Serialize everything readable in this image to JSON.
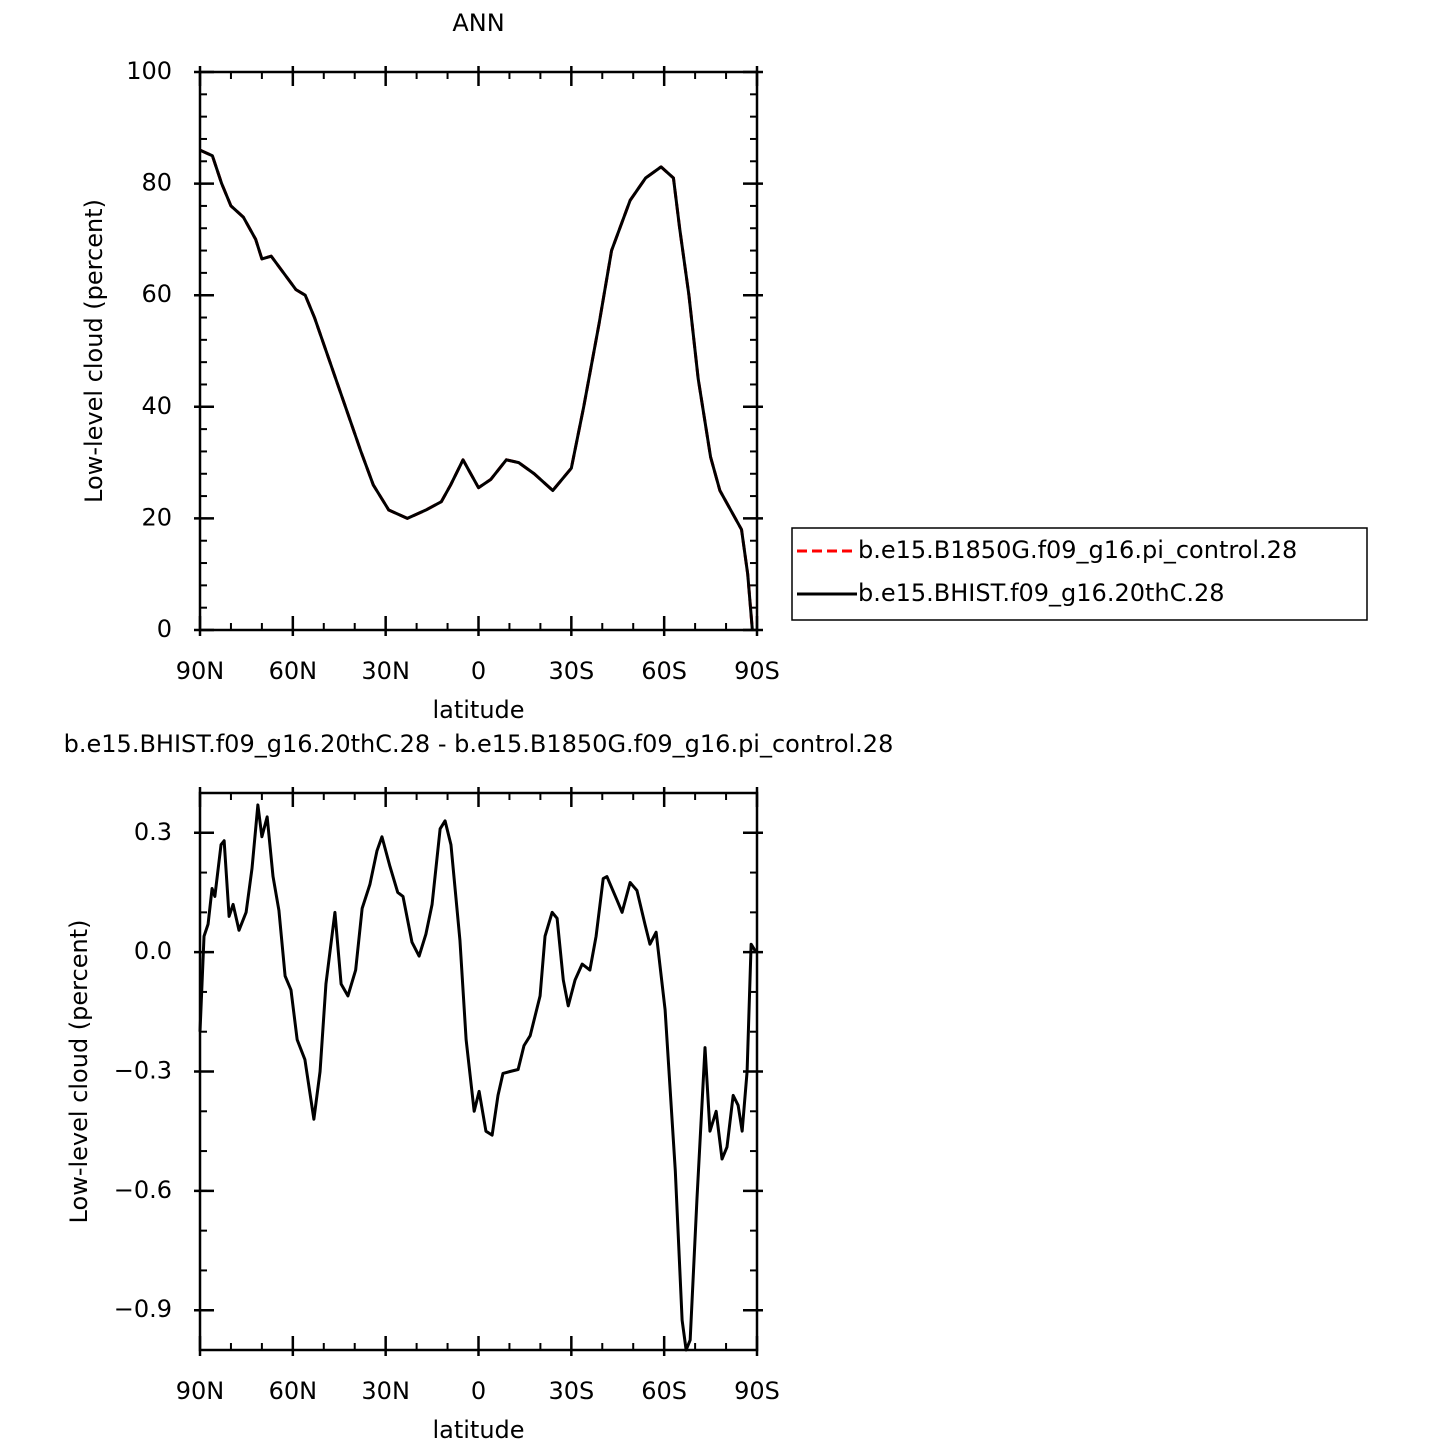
{
  "chart_data": [
    {
      "type": "line",
      "title": "ANN",
      "xlabel": "latitude",
      "ylabel": "Low-level cloud (percent)",
      "xlim": [
        90,
        -90
      ],
      "xticks": [
        {
          "value": 90,
          "label": "90N"
        },
        {
          "value": 60,
          "label": "60N"
        },
        {
          "value": 30,
          "label": "30N"
        },
        0,
        {
          "value": -30,
          "label": "30S"
        },
        {
          "value": -60,
          "label": "60S"
        },
        {
          "value": -90,
          "label": "90S"
        }
      ],
      "ylim": [
        0,
        100
      ],
      "yticks": [
        0,
        20,
        40,
        60,
        80,
        100
      ],
      "legend": "right",
      "x": [
        90,
        86,
        83,
        80,
        76,
        72,
        70,
        67,
        63,
        59,
        56,
        53,
        48,
        43,
        38,
        34,
        29,
        23,
        17,
        12,
        9,
        5,
        3,
        0,
        -4,
        -9,
        -13,
        -18,
        -24,
        -30,
        -34,
        -39,
        -43,
        -49,
        -54,
        -59,
        -63,
        -65,
        -68,
        -71,
        -75,
        -78,
        -82,
        -85,
        -87,
        -88.5
      ],
      "series": [
        {
          "name": "b.e15.B1850G.f09_g16.pi_control.28",
          "color": "#ff0000",
          "linestyle": "dashed",
          "values": [
            86,
            85,
            80,
            76,
            74,
            70,
            66.5,
            67,
            64,
            61,
            60,
            56,
            48,
            40,
            32,
            26,
            21.5,
            20,
            21.5,
            23,
            26,
            30.5,
            28.5,
            25.5,
            27,
            30.5,
            30,
            28,
            25,
            29,
            40,
            55,
            68,
            77,
            81,
            83,
            81,
            72,
            60,
            45,
            31,
            25,
            21,
            18,
            10,
            0
          ]
        },
        {
          "name": "b.e15.BHIST.f09_g16.20thC.28",
          "color": "#000000",
          "linestyle": "solid",
          "values": [
            86,
            85,
            80,
            76,
            74,
            70,
            66.5,
            67,
            64,
            61,
            60,
            56,
            48,
            40,
            32,
            26,
            21.5,
            20,
            21.5,
            23,
            26,
            30.5,
            28.5,
            25.5,
            27,
            30.5,
            30,
            28,
            25,
            29,
            40,
            55,
            68,
            77,
            81,
            83,
            81,
            72,
            60,
            45,
            31,
            25,
            21,
            18,
            10,
            0
          ]
        }
      ]
    },
    {
      "type": "line",
      "title": "b.e15.BHIST.f09_g16.20thC.28 - b.e15.B1850G.f09_g16.pi_control.28",
      "xlabel": "latitude",
      "ylabel": "Low-level cloud (percent)",
      "xlim": [
        90,
        -90
      ],
      "xticks": [
        {
          "value": 90,
          "label": "90N"
        },
        {
          "value": 60,
          "label": "60N"
        },
        {
          "value": 30,
          "label": "30N"
        },
        0,
        {
          "value": -30,
          "label": "30S"
        },
        {
          "value": -60,
          "label": "60S"
        },
        {
          "value": -90,
          "label": "90S"
        }
      ],
      "ylim": [
        -1.0,
        0.4
      ],
      "yticks": [
        {
          "value": -0.9,
          "label": "−0.9"
        },
        {
          "value": -0.6,
          "label": "−0.6"
        },
        {
          "value": -0.3,
          "label": "−0.3"
        },
        {
          "value": 0,
          "label": "0.0"
        },
        0.3
      ],
      "x": [
        90,
        88.7,
        87.4,
        86.1,
        85.2,
        83.2,
        82.2,
        80.6,
        79.3,
        77.4,
        75.1,
        73.2,
        71.3,
        70,
        68.3,
        66.4,
        64.5,
        62.5,
        60.6,
        58.6,
        56.1,
        53.2,
        51.2,
        49.3,
        46.4,
        44.4,
        42.2,
        39.7,
        37.6,
        35.1,
        32.8,
        31.2,
        28.6,
        26.1,
        24.4,
        21.5,
        19.2,
        17,
        15,
        12.4,
        10.8,
        8.9,
        6,
        4,
        1.4,
        -0.2,
        -2.4,
        -4.4,
        -6.3,
        -7.9,
        -10.2,
        -12.8,
        -14.7,
        -16.7,
        -19.9,
        -21.5,
        -23.8,
        -25.4,
        -27.4,
        -29,
        -31.2,
        -33.5,
        -36,
        -38,
        -40.3,
        -41.5,
        -44.8,
        -46.4,
        -49,
        -51.2,
        -53.8,
        -55.4,
        -57.4,
        -60.3,
        -63.6,
        -65.8,
        -67.1,
        -68.4,
        -70.6,
        -73.2,
        -74.8,
        -76.8,
        -78.7,
        -80.3,
        -82.3,
        -83.9,
        -85.2,
        -86.8,
        -88.1,
        -89.7
      ],
      "series": [
        {
          "color": "#000000",
          "linestyle": "solid",
          "values": [
            -0.2,
            0.04,
            0.07,
            0.16,
            0.14,
            0.27,
            0.28,
            0.09,
            0.12,
            0.055,
            0.1,
            0.21,
            0.37,
            0.29,
            0.34,
            0.19,
            0.105,
            -0.06,
            -0.095,
            -0.22,
            -0.27,
            -0.42,
            -0.3,
            -0.08,
            0.1,
            -0.08,
            -0.11,
            -0.045,
            0.11,
            0.17,
            0.255,
            0.29,
            0.215,
            0.15,
            0.14,
            0.025,
            -0.01,
            0.045,
            0.12,
            0.31,
            0.33,
            0.27,
            0.03,
            -0.22,
            -0.4,
            -0.35,
            -0.45,
            -0.46,
            -0.36,
            -0.305,
            -0.3,
            -0.295,
            -0.235,
            -0.21,
            -0.11,
            0.04,
            0.1,
            0.085,
            -0.07,
            -0.135,
            -0.07,
            -0.03,
            -0.045,
            0.04,
            0.185,
            0.19,
            0.13,
            0.1,
            0.175,
            0.155,
            0.07,
            0.02,
            0.05,
            -0.145,
            -0.55,
            -0.925,
            -1.0,
            -0.975,
            -0.62,
            -0.24,
            -0.45,
            -0.4,
            -0.52,
            -0.49,
            -0.36,
            -0.385,
            -0.45,
            -0.3,
            0.02,
            0.0
          ]
        }
      ]
    }
  ]
}
